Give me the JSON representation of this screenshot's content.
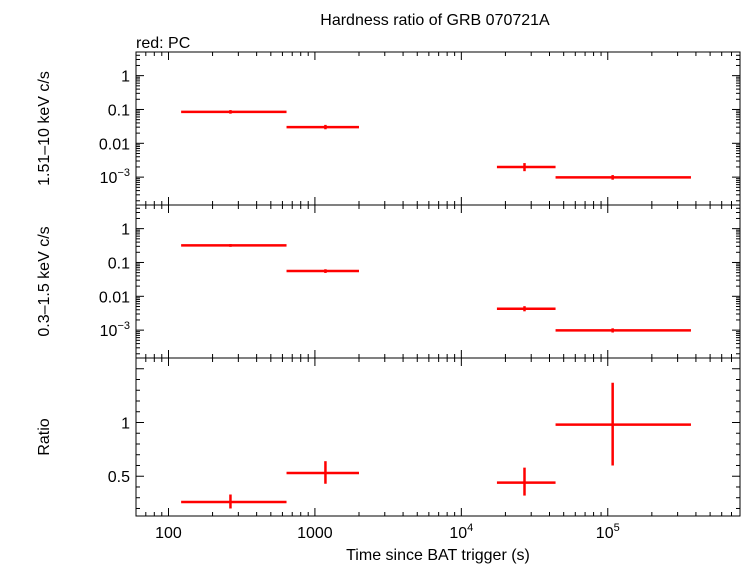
{
  "colors": {
    "data": "#ff0000",
    "axis": "#000000",
    "background": "#ffffff"
  },
  "chart_data": {
    "type": "scatter",
    "title": "Hardness ratio of GRB 070721A",
    "subtitle": "red: PC",
    "xlabel": "Time since BAT trigger (s)",
    "x_scale": "log",
    "xlim": [
      60,
      800000
    ],
    "x_tick_labels": [
      "100",
      "1000",
      "10",
      "10"
    ],
    "x_tick_exponents": [
      "",
      "",
      "4",
      "5"
    ],
    "panels": [
      {
        "ylabel": "1.51–10 keV c/s",
        "y_scale": "log",
        "ylim": [
          0.00015,
          5
        ],
        "y_tick_labels": [
          "1",
          "0.1",
          "0.01",
          "10"
        ],
        "y_tick_exponents": [
          "",
          "",
          "",
          "−3"
        ],
        "points": [
          {
            "x": 265,
            "x_lo": 122,
            "x_hi": 640,
            "y": 0.085,
            "y_lo": 0.075,
            "y_hi": 0.096
          },
          {
            "x": 1180,
            "x_lo": 640,
            "x_hi": 2000,
            "y": 0.03,
            "y_lo": 0.026,
            "y_hi": 0.035
          },
          {
            "x": 27000,
            "x_lo": 17500,
            "x_hi": 44000,
            "y": 0.002,
            "y_lo": 0.0015,
            "y_hi": 0.0026
          },
          {
            "x": 108000,
            "x_lo": 44000,
            "x_hi": 370000,
            "y": 0.00098,
            "y_lo": 0.00084,
            "y_hi": 0.00115
          }
        ]
      },
      {
        "ylabel": "0.3–1.5 keV c/s",
        "y_scale": "log",
        "ylim": [
          0.00015,
          5
        ],
        "y_tick_labels": [
          "1",
          "0.1",
          "0.01",
          "10"
        ],
        "y_tick_exponents": [
          "",
          "",
          "",
          "−3"
        ],
        "points": [
          {
            "x": 265,
            "x_lo": 122,
            "x_hi": 640,
            "y": 0.32,
            "y_lo": 0.29,
            "y_hi": 0.35
          },
          {
            "x": 1180,
            "x_lo": 640,
            "x_hi": 2000,
            "y": 0.056,
            "y_lo": 0.049,
            "y_hi": 0.063
          },
          {
            "x": 27000,
            "x_lo": 17500,
            "x_hi": 44000,
            "y": 0.0043,
            "y_lo": 0.0036,
            "y_hi": 0.0051
          },
          {
            "x": 108000,
            "x_lo": 44000,
            "x_hi": 370000,
            "y": 0.00098,
            "y_lo": 0.00085,
            "y_hi": 0.00113
          }
        ]
      },
      {
        "ylabel": "Ratio",
        "y_scale": "linear",
        "ylim": [
          0.13,
          1.6
        ],
        "y_tick_labels": [
          "1",
          "0.5"
        ],
        "y_tick_values": [
          1,
          0.5
        ],
        "y_minor_step": 0.1,
        "points": [
          {
            "x": 265,
            "x_lo": 122,
            "x_hi": 640,
            "y": 0.26,
            "y_lo": 0.2,
            "y_hi": 0.33
          },
          {
            "x": 1180,
            "x_lo": 640,
            "x_hi": 2000,
            "y": 0.53,
            "y_lo": 0.43,
            "y_hi": 0.64
          },
          {
            "x": 27000,
            "x_lo": 17500,
            "x_hi": 44000,
            "y": 0.44,
            "y_lo": 0.32,
            "y_hi": 0.58
          },
          {
            "x": 108000,
            "x_lo": 44000,
            "x_hi": 370000,
            "y": 0.98,
            "y_lo": 0.6,
            "y_hi": 1.37
          }
        ]
      }
    ],
    "grid": false,
    "legend": "none"
  }
}
